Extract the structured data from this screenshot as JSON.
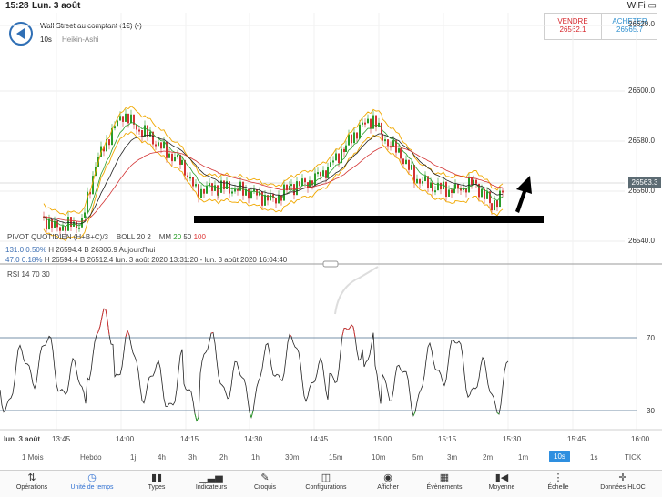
{
  "status": {
    "time": "15:28",
    "date": "Lun. 3 août",
    "icons": "WiFi ▭"
  },
  "header": {
    "instrument": "Wall Street au comptant (1€) (-)",
    "timeframe": "10s",
    "chart_type": "Heikin-Ashi",
    "sell_label": "VENDRE",
    "sell_price": "26562.1",
    "buy_label": "ACHETER",
    "buy_price": "26565.7"
  },
  "price_axis": [
    "26620.0",
    "26600.0",
    "26580.0",
    "26560.0",
    "26540.0"
  ],
  "current_price": "26563.3",
  "indicators": {
    "pivot": "PIVOT  QUOTIDIEN  (H+B+C)/3",
    "boll": "BOLL  20  2",
    "mm_label": "MM",
    "mm_20": "20",
    "mm_50": "50",
    "mm_100": "100",
    "row1_a": "131.0",
    "row1_b": "0.50%",
    "row1_h": "H 26594.4",
    "row1_l": "B 26306.9",
    "row1_t": "Aujourd'hui",
    "row2_a": "47.0",
    "row2_b": "0.18%",
    "row2_h": "H 26594.4",
    "row2_l": "B 26512.4",
    "row2_t": "lun. 3 août 2020 13:31:20 - lun. 3 août 2020 16:04:40",
    "rsi": "RSI  14  70  30"
  },
  "rsi_axis": [
    "70",
    "30"
  ],
  "time_axis": [
    "lun. 3 août",
    "13:45",
    "14:00",
    "14:15",
    "14:30",
    "14:45",
    "15:00",
    "15:15",
    "15:30",
    "15:45",
    "16:00"
  ],
  "timeframes": [
    "1 Mois",
    "Hebdo",
    "1j",
    "4h",
    "3h",
    "2h",
    "1h",
    "30m",
    "15m",
    "10m",
    "5m",
    "3m",
    "2m",
    "1m",
    "10s",
    "1s",
    "TICK"
  ],
  "active_timeframe": "10s",
  "tabs": [
    {
      "label": "Opérations",
      "icon": "swap-arrows-icon"
    },
    {
      "label": "Unité de temps",
      "icon": "clock-icon"
    },
    {
      "label": "Types",
      "icon": "candles-icon"
    },
    {
      "label": "Indicateurs",
      "icon": "bars-icon"
    },
    {
      "label": "Croquis",
      "icon": "pencil-icon"
    },
    {
      "label": "Configurations",
      "icon": "layout-icon"
    },
    {
      "label": "Afficher",
      "icon": "eye-icon"
    },
    {
      "label": "Évènements",
      "icon": "calendar-icon"
    },
    {
      "label": "Moyenne",
      "icon": "play-icon"
    },
    {
      "label": "Échelle",
      "icon": "scale-icon"
    },
    {
      "label": "Données HLOC",
      "icon": "crosshair-icon"
    }
  ],
  "colors": {
    "accent": "#2e8fe0",
    "sell": "#d6262b",
    "buy": "#2e8fcf",
    "bull": "#2a9d2a",
    "bear": "#d33333"
  }
}
